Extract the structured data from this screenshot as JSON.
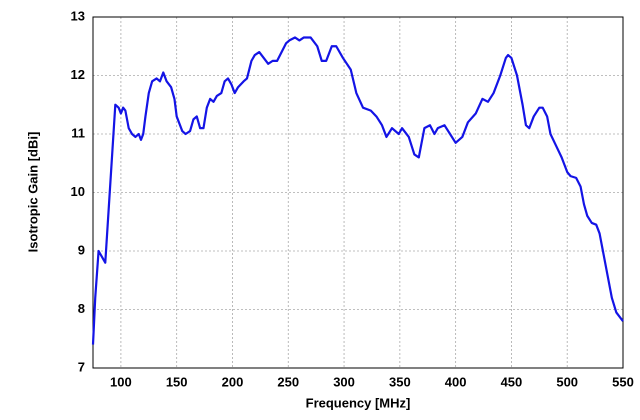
{
  "chart_data": {
    "type": "line",
    "x_label": "Frequency [MHz]",
    "y_label": "Isotropic Gain [dBi]",
    "xlim": [
      75,
      550
    ],
    "ylim": [
      7,
      13
    ],
    "xticks": [
      100,
      150,
      200,
      250,
      300,
      350,
      400,
      450,
      500,
      550
    ],
    "yticks": [
      7,
      8,
      9,
      10,
      11,
      12,
      13
    ],
    "grid": true,
    "series": [
      {
        "color": "#1414e6",
        "x": [
          75,
          77,
          80,
          83,
          86,
          90,
          95,
          98,
          100,
          102,
          104,
          107,
          110,
          113,
          116,
          118,
          120,
          122,
          125,
          128,
          132,
          135,
          138,
          141,
          145,
          148,
          150,
          152,
          155,
          158,
          162,
          165,
          168,
          171,
          174,
          177,
          180,
          183,
          186,
          190,
          193,
          196,
          199,
          202,
          205,
          210,
          213,
          217,
          220,
          224,
          228,
          232,
          236,
          240,
          244,
          248,
          251,
          256,
          260,
          264,
          270,
          276,
          280,
          284,
          289,
          293,
          299,
          306,
          311,
          317,
          324,
          329,
          334,
          338,
          343,
          349,
          352,
          358,
          363,
          367,
          372,
          377,
          381,
          384,
          390,
          395,
          400,
          406,
          411,
          418,
          424,
          429,
          434,
          440,
          445,
          447,
          450,
          455,
          460,
          463,
          466,
          470,
          475,
          478,
          482,
          485,
          490,
          495,
          500,
          503,
          508,
          512,
          515,
          518,
          522,
          526,
          529,
          532,
          536,
          540,
          544,
          548,
          550
        ],
        "values": [
          7.4,
          8.2,
          9.0,
          8.9,
          8.8,
          10.0,
          11.5,
          11.45,
          11.35,
          11.45,
          11.4,
          11.1,
          11.0,
          10.95,
          11.0,
          10.9,
          11.0,
          11.3,
          11.7,
          11.9,
          11.95,
          11.9,
          12.05,
          11.9,
          11.8,
          11.6,
          11.3,
          11.2,
          11.05,
          11.0,
          11.05,
          11.25,
          11.3,
          11.1,
          11.1,
          11.45,
          11.6,
          11.55,
          11.65,
          11.7,
          11.9,
          11.95,
          11.85,
          11.7,
          11.8,
          11.9,
          11.95,
          12.25,
          12.35,
          12.4,
          12.3,
          12.2,
          12.25,
          12.25,
          12.4,
          12.55,
          12.6,
          12.65,
          12.6,
          12.65,
          12.65,
          12.5,
          12.25,
          12.25,
          12.5,
          12.5,
          12.3,
          12.1,
          11.7,
          11.45,
          11.4,
          11.3,
          11.15,
          10.95,
          11.1,
          11.0,
          11.1,
          10.95,
          10.65,
          10.6,
          11.1,
          11.15,
          11.0,
          11.1,
          11.15,
          11.0,
          10.85,
          10.95,
          11.2,
          11.35,
          11.6,
          11.55,
          11.7,
          12.0,
          12.3,
          12.35,
          12.3,
          12.0,
          11.5,
          11.15,
          11.1,
          11.3,
          11.45,
          11.45,
          11.3,
          11.0,
          10.8,
          10.6,
          10.35,
          10.28,
          10.25,
          10.1,
          9.8,
          9.6,
          9.48,
          9.45,
          9.3,
          9.0,
          8.6,
          8.2,
          7.95,
          7.85,
          7.8
        ]
      }
    ]
  }
}
